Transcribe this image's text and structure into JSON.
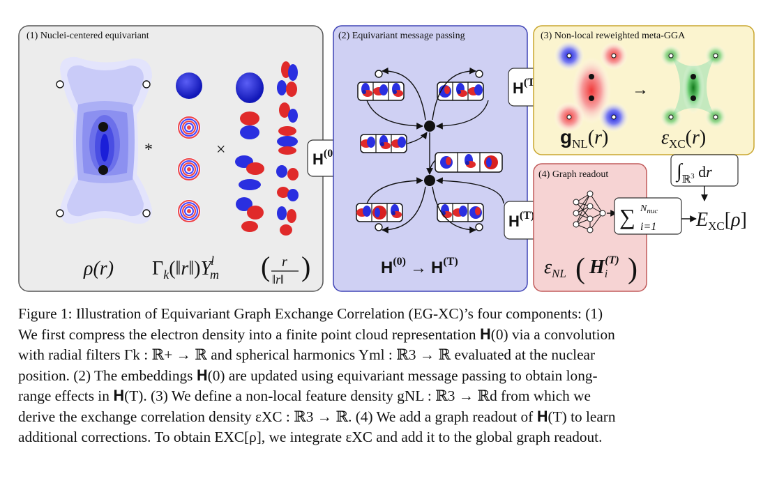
{
  "figure": {
    "panels": [
      {
        "title": "(1) Nuclei-centered equivariant",
        "color": "#ececec",
        "border": "#555555"
      },
      {
        "title": "(2) Equivariant message passing",
        "color": "#cfd0f3",
        "border": "#3f43b5"
      },
      {
        "title": "(3) Non-local reweighted meta-GGA",
        "color": "#fbf4cf",
        "border": "#c9a62e"
      },
      {
        "title": "(4) Graph readout",
        "color": "#f6d3d3",
        "border": "#c05a5a"
      }
    ],
    "labels": {
      "rho": "ρ(r)",
      "gamma_Y": "Γk(‖r‖)Y",
      "star": "*",
      "times": "×",
      "H0": "H(0)",
      "HT": "H(T)",
      "H0_to_HT": "H(0) → H(T)",
      "gNL": "gNL(r)",
      "eXC": "εXC(r)",
      "arrow": "→",
      "integral": "∫ℝ3 dr",
      "sum": "∑i=1Nnuc",
      "EXC": "EXC[ρ]",
      "eNL": "εNL(Hi(T))"
    },
    "colors": {
      "blue": "#2f34e0",
      "red": "#e02a2a",
      "green": "#1f9a2a"
    }
  },
  "caption": {
    "lines": [
      "Figure 1: Illustration of Equivariant Graph Exchange Correlation (EG-XC)’s four components: (1)",
      "We first compress the electron density into a finite point cloud representation 𝐇(0) via a convolution",
      "with radial filters Γk : ℝ+ → ℝ and spherical harmonics Yml : ℝ3 → ℝ evaluated at the nuclear",
      "position. (2) The embeddings 𝐇(0) are updated using equivariant message passing to obtain long-",
      "range effects in 𝐇(T). (3) We define a non-local feature density gNL : ℝ3 → ℝd from which we",
      "derive the exchange correlation density εXC : ℝ3 → ℝ. (4) We add a graph readout of 𝐇(T) to learn",
      "additional corrections. To obtain EXC[ρ], we integrate εXC and add it to the global graph readout."
    ]
  }
}
